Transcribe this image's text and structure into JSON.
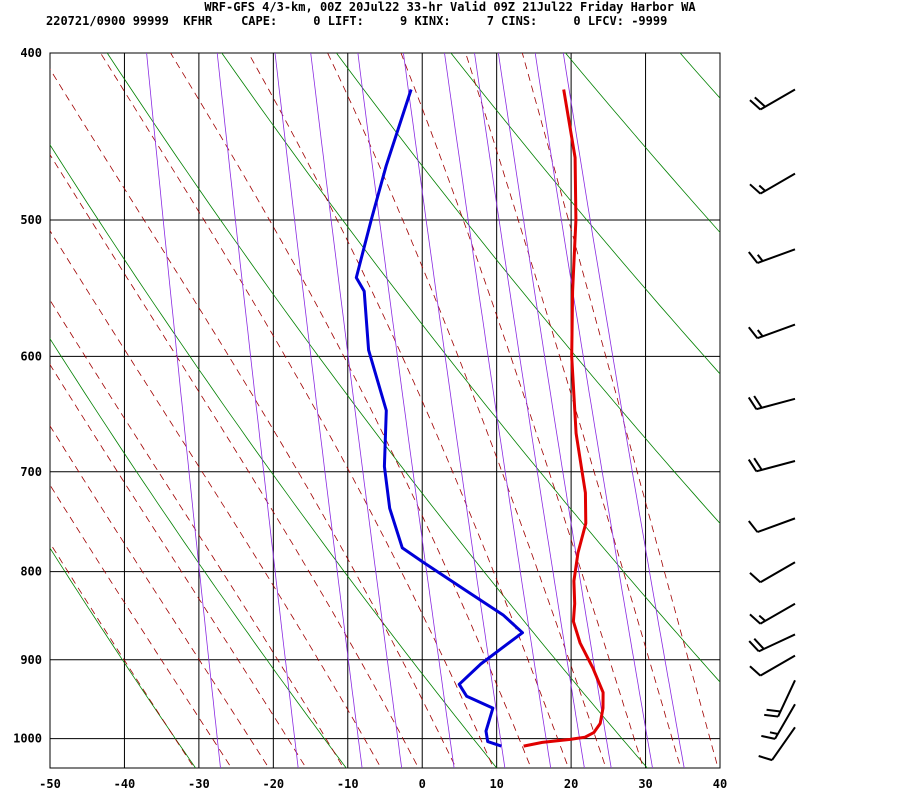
{
  "header": {
    "title": "WRF-GFS 4/3-km, 00Z 20Jul22 33-hr Valid 09Z 21Jul22 Friday Harbor WA",
    "stats": "220721/0900 99999  KFHR    CAPE:     0 LIFT:     9 KINX:     7 CINS:     0 LFCV: -9999"
  },
  "chart_data": {
    "type": "line",
    "chart_kind": "skew-T log-p sounding",
    "xlabel": "",
    "ylabel": "",
    "xlim": [
      -50,
      40
    ],
    "ylim_pressure": [
      1040,
      400
    ],
    "y_scale": "log",
    "x_ticks": [
      "-50",
      "-40",
      "-30",
      "-20",
      "-10",
      "0",
      "10",
      "20",
      "30",
      "40"
    ],
    "pressure_levels": [
      "400",
      "500",
      "600",
      "700",
      "800",
      "900",
      "1000"
    ],
    "grid": true,
    "series": [
      {
        "color": "#e00000",
        "points": [
          [
            1010,
            11.8
          ],
          [
            1005,
            14
          ],
          [
            1001,
            17.5
          ],
          [
            998,
            19.3
          ],
          [
            992,
            20.1
          ],
          [
            980,
            20.2
          ],
          [
            960,
            19.3
          ],
          [
            940,
            18.0
          ],
          [
            910,
            14.6
          ],
          [
            880,
            10.8
          ],
          [
            855,
            8.1
          ],
          [
            835,
            6.8
          ],
          [
            810,
            4.8
          ],
          [
            780,
            3.0
          ],
          [
            750,
            1.6
          ],
          [
            720,
            -1.0
          ],
          [
            700,
            -3.2
          ],
          [
            665,
            -7.2
          ],
          [
            600,
            -14.2
          ],
          [
            550,
            -19.5
          ],
          [
            500,
            -25.0
          ],
          [
            460,
            -30.3
          ],
          [
            420,
            -37.5
          ]
        ]
      },
      {
        "color": "#0000d8",
        "points": [
          [
            1010,
            8.8
          ],
          [
            1004,
            6.6
          ],
          [
            990,
            5.5
          ],
          [
            960,
            4.5
          ],
          [
            945,
            0
          ],
          [
            930,
            -2
          ],
          [
            905,
            -0.8
          ],
          [
            885,
            0.8
          ],
          [
            868,
            2.2
          ],
          [
            848,
            -1.8
          ],
          [
            820,
            -9
          ],
          [
            790,
            -17
          ],
          [
            775,
            -21
          ],
          [
            735,
            -26
          ],
          [
            695,
            -30.2
          ],
          [
            645,
            -34.6
          ],
          [
            595,
            -42
          ],
          [
            550,
            -47.5
          ],
          [
            540,
            -49.7
          ],
          [
            500,
            -52.5
          ],
          [
            465,
            -55
          ],
          [
            420,
            -58
          ]
        ]
      }
    ],
    "wind_barbs_note": "wind barbs shown along right margin",
    "wind_barbs": [
      {
        "p": 420,
        "dir": 240,
        "kt": 20
      },
      {
        "p": 470,
        "dir": 240,
        "kt": 15
      },
      {
        "p": 520,
        "dir": 250,
        "kt": 15
      },
      {
        "p": 575,
        "dir": 250,
        "kt": 15
      },
      {
        "p": 635,
        "dir": 255,
        "kt": 20
      },
      {
        "p": 690,
        "dir": 255,
        "kt": 20
      },
      {
        "p": 745,
        "dir": 250,
        "kt": 10
      },
      {
        "p": 790,
        "dir": 240,
        "kt": 10
      },
      {
        "p": 835,
        "dir": 240,
        "kt": 15
      },
      {
        "p": 870,
        "dir": 245,
        "kt": 20
      },
      {
        "p": 895,
        "dir": 240,
        "kt": 10
      },
      {
        "p": 925,
        "dir": 205,
        "kt": 20
      },
      {
        "p": 955,
        "dir": 210,
        "kt": 15
      },
      {
        "p": 985,
        "dir": 215,
        "kt": 10
      }
    ]
  }
}
